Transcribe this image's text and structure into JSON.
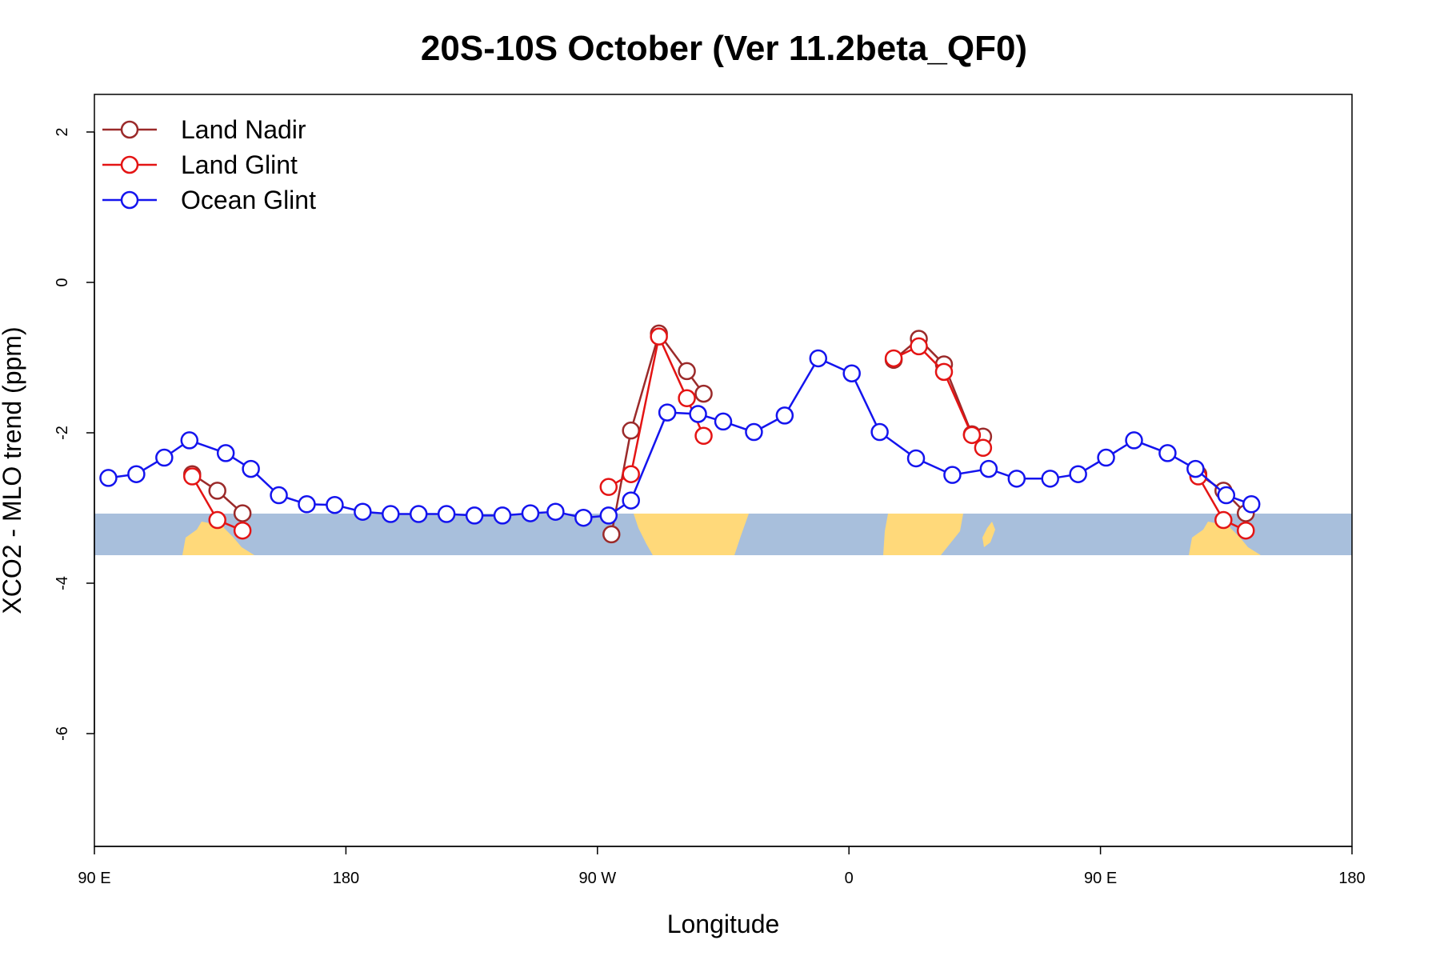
{
  "chart_data": {
    "type": "line",
    "title": "20S-10S October (Ver 11.2beta_QF0)",
    "xlabel": "Longitude",
    "ylabel": "XCO2 - MLO trend (ppm)",
    "xlim": [
      90,
      450
    ],
    "ylim": [
      -7.5,
      2.5
    ],
    "x_ticks": [
      {
        "value": 90,
        "label": "90 E"
      },
      {
        "value": 180,
        "label": "180"
      },
      {
        "value": 270,
        "label": "90 W"
      },
      {
        "value": 360,
        "label": "0"
      },
      {
        "value": 450,
        "label": "90 E"
      },
      {
        "value": 540,
        "label": "180"
      }
    ],
    "x_note": "x values are longitudes on the displayed axis running 90 E eastward across 180 to 90 E and 180",
    "y_ticks": [
      {
        "value": 2,
        "label": "2"
      },
      {
        "value": 0,
        "label": "0"
      },
      {
        "value": -2,
        "label": "-2"
      },
      {
        "value": -4,
        "label": "-4"
      },
      {
        "value": -6,
        "label": "-6"
      }
    ],
    "grid": false,
    "legend": "top-left",
    "map_strip": {
      "y_top": -3.12,
      "y_bottom": -3.65,
      "ocean_color": "#a8bfdc",
      "land_color": "#ffd97a"
    },
    "series": [
      {
        "name": "Land Nadir",
        "color": "#9b2a2a",
        "segments": [
          {
            "x": [
              125,
              134,
              143
            ],
            "y": [
              -2.55,
              -2.77,
              -3.07
            ]
          },
          {
            "x": [
              275,
              282,
              292,
              302,
              308
            ],
            "y": [
              -3.35,
              -1.97,
              -0.68,
              -1.18,
              -1.48
            ]
          },
          {
            "x": [
              376,
              385,
              394,
              404,
              408
            ],
            "y": [
              -1.03,
              -0.75,
              -1.09,
              -2.02,
              -2.05
            ]
          },
          {
            "x": [
              485,
              494,
              502
            ],
            "y": [
              -2.55,
              -2.77,
              -3.07
            ]
          }
        ]
      },
      {
        "name": "Land Glint",
        "color": "#e41414",
        "segments": [
          {
            "x": [
              125,
              134,
              143
            ],
            "y": [
              -2.58,
              -3.16,
              -3.3
            ]
          },
          {
            "x": [
              274,
              282,
              292,
              302,
              308
            ],
            "y": [
              -2.72,
              -2.55,
              -0.72,
              -1.54,
              -2.04
            ]
          },
          {
            "x": [
              376,
              385,
              394,
              404,
              408
            ],
            "y": [
              -1.01,
              -0.85,
              -1.19,
              -2.03,
              -2.2
            ]
          },
          {
            "x": [
              485,
              494,
              502
            ],
            "y": [
              -2.58,
              -3.16,
              -3.3
            ]
          }
        ]
      },
      {
        "name": "Ocean Glint",
        "color": "#1414ee",
        "segments": [
          {
            "x": [
              95,
              105,
              115,
              124,
              137,
              146,
              156,
              166,
              176,
              186,
              196,
              206,
              216,
              226,
              236,
              246,
              255,
              265,
              274,
              282,
              295,
              306,
              315,
              326,
              337,
              349,
              361,
              371,
              384,
              397,
              410,
              420,
              432,
              442,
              452,
              462,
              474,
              484,
              495,
              504
            ],
            "y": [
              -2.6,
              -2.55,
              -2.33,
              -2.1,
              -2.27,
              -2.48,
              -2.83,
              -2.95,
              -2.96,
              -3.05,
              -3.08,
              -3.08,
              -3.08,
              -3.1,
              -3.1,
              -3.07,
              -3.05,
              -3.13,
              -3.1,
              -2.9,
              -1.73,
              -1.75,
              -1.85,
              -1.99,
              -1.77,
              -1.01,
              -1.21,
              -1.99,
              -2.34,
              -2.56,
              -2.48,
              -2.61,
              -2.61,
              -2.55,
              -2.33,
              -2.1,
              -2.27,
              -2.48,
              -2.83,
              -2.95
            ]
          }
        ]
      }
    ]
  }
}
